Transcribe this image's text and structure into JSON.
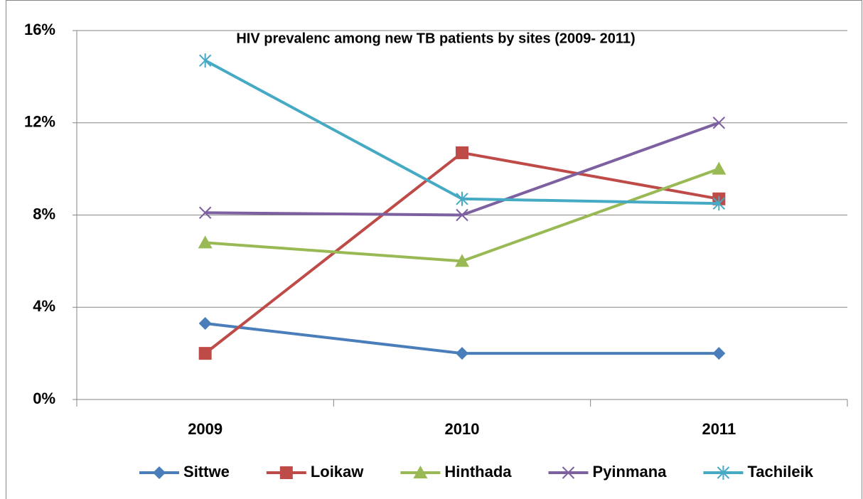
{
  "chart_data": {
    "type": "line",
    "title": "HIV prevalenc among new TB patients by sites (2009- 2011)",
    "categories": [
      "2009",
      "2010",
      "2011"
    ],
    "series": [
      {
        "name": "Sittwe",
        "color": "#4a7ebb",
        "marker": "diamond",
        "values": [
          3.3,
          2.0,
          2.0
        ]
      },
      {
        "name": "Loikaw",
        "color": "#be4b48",
        "marker": "square",
        "values": [
          2.0,
          10.7,
          8.7
        ]
      },
      {
        "name": "Hinthada",
        "color": "#98b954",
        "marker": "triangle",
        "values": [
          6.8,
          6.0,
          10.0
        ]
      },
      {
        "name": "Pyinmana",
        "color": "#7d60a0",
        "marker": "x",
        "values": [
          8.1,
          8.0,
          12.0
        ]
      },
      {
        "name": "Tachileik",
        "color": "#46aac5",
        "marker": "star",
        "values": [
          14.7,
          8.7,
          8.5
        ]
      }
    ],
    "ylim": [
      0,
      16
    ],
    "yticks": [
      {
        "value": 0,
        "label": "0%"
      },
      {
        "value": 4,
        "label": "4%"
      },
      {
        "value": 8,
        "label": "8%"
      },
      {
        "value": 12,
        "label": "12%"
      },
      {
        "value": 16,
        "label": "16%"
      }
    ],
    "grid": true,
    "legend": "bottom"
  }
}
